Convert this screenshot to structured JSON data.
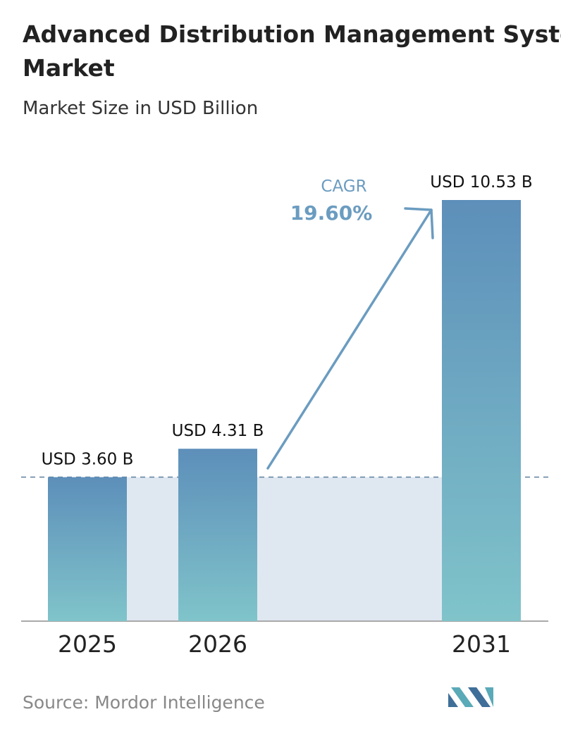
{
  "chart_data": {
    "type": "bar",
    "title": "Advanced Distribution Management System Market",
    "subtitle": "Market Size in USD Billion",
    "categories": [
      "2025",
      "2026",
      "2031"
    ],
    "values": [
      3.6,
      4.31,
      10.53
    ],
    "value_labels": [
      "USD 3.60 B",
      "USD 4.31 B",
      "USD 10.53 B"
    ],
    "annotations": {
      "cagr_label": "CAGR",
      "cagr_value": "19.60%"
    },
    "source": "Source:  Mordor Intelligence"
  }
}
